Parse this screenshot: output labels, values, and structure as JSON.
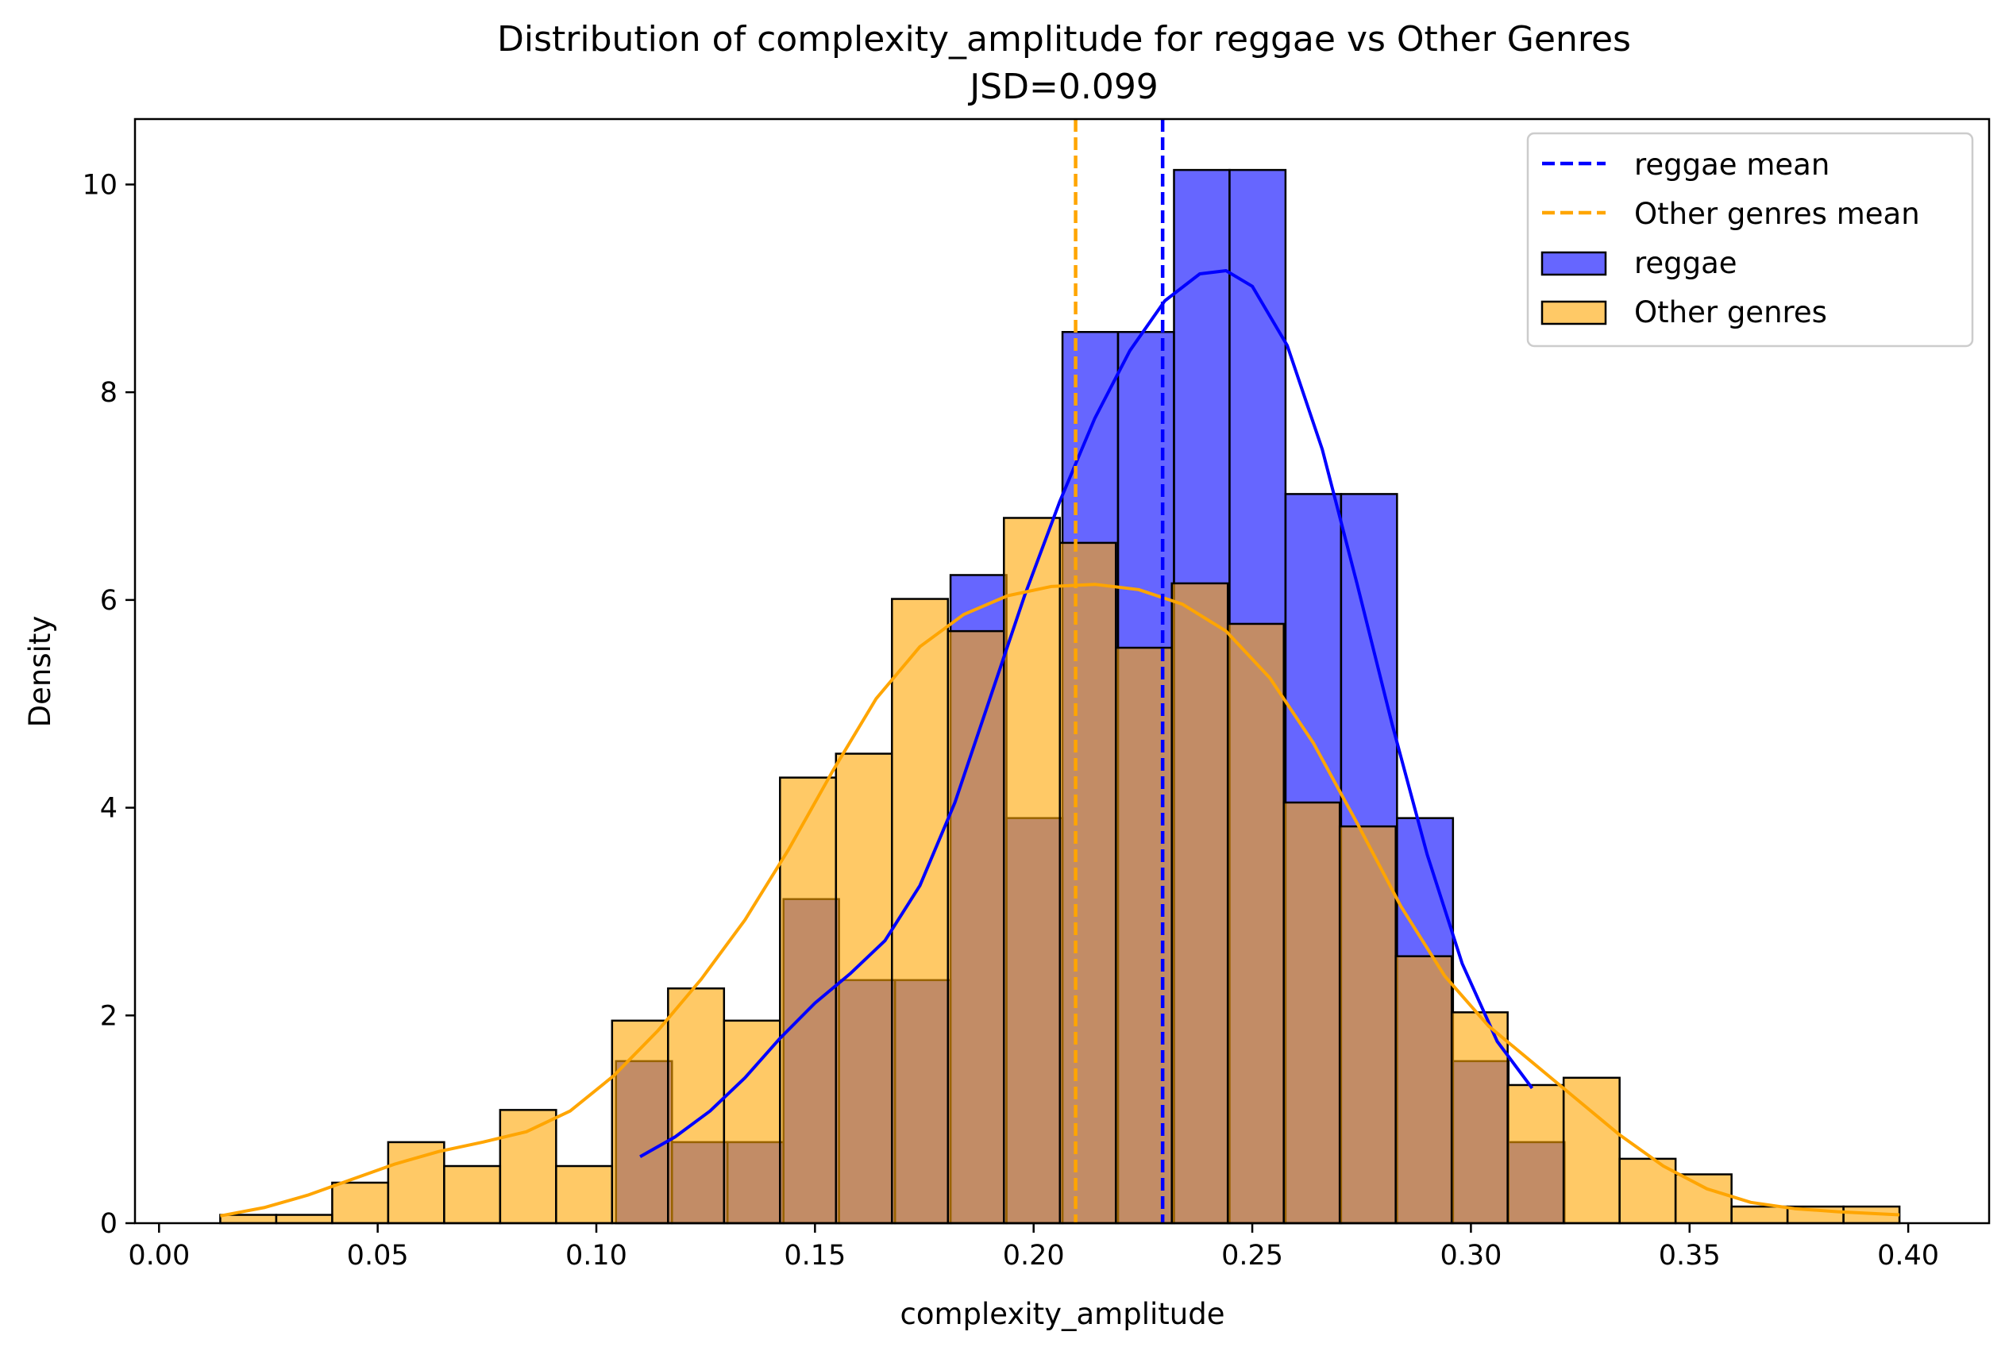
{
  "chart_data": {
    "type": "histogram",
    "title": "Distribution of complexity_amplitude for reggae vs Other Genres",
    "subtitle": "JSD=0.099",
    "xlabel": "complexity_amplitude",
    "ylabel": "Density",
    "xlim": [
      -0.0055,
      0.4185
    ],
    "ylim": [
      0,
      10.63
    ],
    "xticks": [
      0.0,
      0.05,
      0.1,
      0.15,
      0.2,
      0.25,
      0.3,
      0.35,
      0.4
    ],
    "xtick_labels": [
      "0.00",
      "0.05",
      "0.10",
      "0.15",
      "0.20",
      "0.25",
      "0.30",
      "0.35",
      "0.40"
    ],
    "yticks": [
      0,
      2,
      4,
      6,
      8,
      10
    ],
    "ytick_labels": [
      "0",
      "2",
      "4",
      "6",
      "8",
      "10"
    ],
    "grid": false,
    "legend_position": "top-right",
    "legend": [
      {
        "label": "reggae mean",
        "kind": "dashed-line",
        "color": "#0000ff"
      },
      {
        "label": "Other genres mean",
        "kind": "dashed-line",
        "color": "#ffa500"
      },
      {
        "label": "reggae",
        "kind": "patch",
        "color": "#0000ff"
      },
      {
        "label": "Other genres",
        "kind": "patch",
        "color": "#ffa500"
      }
    ],
    "series": [
      {
        "name": "reggae",
        "color": "#0000ff",
        "alpha": 0.6,
        "bins": [
          {
            "x0": 0.1045,
            "x1": 0.1173,
            "density": 1.56
          },
          {
            "x0": 0.1173,
            "x1": 0.13,
            "density": 0.78
          },
          {
            "x0": 0.13,
            "x1": 0.1428,
            "density": 0.78
          },
          {
            "x0": 0.1428,
            "x1": 0.1555,
            "density": 3.12
          },
          {
            "x0": 0.1555,
            "x1": 0.1683,
            "density": 2.34
          },
          {
            "x0": 0.1683,
            "x1": 0.181,
            "density": 2.34
          },
          {
            "x0": 0.181,
            "x1": 0.1938,
            "density": 6.24
          },
          {
            "x0": 0.1938,
            "x1": 0.2066,
            "density": 3.9
          },
          {
            "x0": 0.2066,
            "x1": 0.2193,
            "density": 8.58
          },
          {
            "x0": 0.2193,
            "x1": 0.2321,
            "density": 8.58
          },
          {
            "x0": 0.2321,
            "x1": 0.2448,
            "density": 10.14
          },
          {
            "x0": 0.2448,
            "x1": 0.2576,
            "density": 10.14
          },
          {
            "x0": 0.2576,
            "x1": 0.2703,
            "density": 7.02
          },
          {
            "x0": 0.2703,
            "x1": 0.2831,
            "density": 7.02
          },
          {
            "x0": 0.2831,
            "x1": 0.2959,
            "density": 3.9
          },
          {
            "x0": 0.2959,
            "x1": 0.3086,
            "density": 1.56
          },
          {
            "x0": 0.3086,
            "x1": 0.3214,
            "density": 0.78
          }
        ],
        "kde": [
          [
            0.11,
            0.64
          ],
          [
            0.118,
            0.83
          ],
          [
            0.126,
            1.08
          ],
          [
            0.134,
            1.4
          ],
          [
            0.142,
            1.78
          ],
          [
            0.15,
            2.12
          ],
          [
            0.158,
            2.4
          ],
          [
            0.166,
            2.72
          ],
          [
            0.174,
            3.25
          ],
          [
            0.182,
            4.05
          ],
          [
            0.19,
            5.05
          ],
          [
            0.198,
            6.05
          ],
          [
            0.206,
            6.95
          ],
          [
            0.214,
            7.75
          ],
          [
            0.222,
            8.4
          ],
          [
            0.23,
            8.88
          ],
          [
            0.238,
            9.14
          ],
          [
            0.244,
            9.17
          ],
          [
            0.25,
            9.02
          ],
          [
            0.258,
            8.45
          ],
          [
            0.266,
            7.45
          ],
          [
            0.274,
            6.15
          ],
          [
            0.282,
            4.8
          ],
          [
            0.29,
            3.55
          ],
          [
            0.298,
            2.5
          ],
          [
            0.306,
            1.75
          ],
          [
            0.314,
            1.3
          ]
        ],
        "mean": 0.2295
      },
      {
        "name": "Other genres",
        "color": "#ffa500",
        "alpha": 0.6,
        "bins": [
          {
            "x0": 0.014,
            "x1": 0.0268,
            "density": 0.08
          },
          {
            "x0": 0.0268,
            "x1": 0.0396,
            "density": 0.08
          },
          {
            "x0": 0.0396,
            "x1": 0.0524,
            "density": 0.39
          },
          {
            "x0": 0.0524,
            "x1": 0.0652,
            "density": 0.78
          },
          {
            "x0": 0.0652,
            "x1": 0.078,
            "density": 0.55
          },
          {
            "x0": 0.078,
            "x1": 0.0908,
            "density": 1.09
          },
          {
            "x0": 0.0908,
            "x1": 0.1036,
            "density": 0.55
          },
          {
            "x0": 0.1036,
            "x1": 0.1164,
            "density": 1.95
          },
          {
            "x0": 0.1164,
            "x1": 0.1292,
            "density": 2.26
          },
          {
            "x0": 0.1292,
            "x1": 0.142,
            "density": 1.95
          },
          {
            "x0": 0.142,
            "x1": 0.1548,
            "density": 4.29
          },
          {
            "x0": 0.1548,
            "x1": 0.1676,
            "density": 4.52
          },
          {
            "x0": 0.1676,
            "x1": 0.1804,
            "density": 6.01
          },
          {
            "x0": 0.1804,
            "x1": 0.1932,
            "density": 5.7
          },
          {
            "x0": 0.1932,
            "x1": 0.206,
            "density": 6.79
          },
          {
            "x0": 0.206,
            "x1": 0.2188,
            "density": 6.55
          },
          {
            "x0": 0.2188,
            "x1": 0.2316,
            "density": 5.54
          },
          {
            "x0": 0.2316,
            "x1": 0.2444,
            "density": 6.16
          },
          {
            "x0": 0.2444,
            "x1": 0.2572,
            "density": 5.77
          },
          {
            "x0": 0.2572,
            "x1": 0.27,
            "density": 4.05
          },
          {
            "x0": 0.27,
            "x1": 0.2828,
            "density": 3.82
          },
          {
            "x0": 0.2828,
            "x1": 0.2956,
            "density": 2.57
          },
          {
            "x0": 0.2956,
            "x1": 0.3084,
            "density": 2.03
          },
          {
            "x0": 0.3084,
            "x1": 0.3212,
            "density": 1.33
          },
          {
            "x0": 0.3212,
            "x1": 0.334,
            "density": 1.4
          },
          {
            "x0": 0.334,
            "x1": 0.3468,
            "density": 0.62
          },
          {
            "x0": 0.3468,
            "x1": 0.3596,
            "density": 0.47
          },
          {
            "x0": 0.3596,
            "x1": 0.3724,
            "density": 0.16
          },
          {
            "x0": 0.3724,
            "x1": 0.3852,
            "density": 0.16
          },
          {
            "x0": 0.3852,
            "x1": 0.398,
            "density": 0.16
          }
        ],
        "kde": [
          [
            0.014,
            0.07
          ],
          [
            0.024,
            0.15
          ],
          [
            0.034,
            0.27
          ],
          [
            0.044,
            0.42
          ],
          [
            0.054,
            0.57
          ],
          [
            0.064,
            0.69
          ],
          [
            0.074,
            0.78
          ],
          [
            0.084,
            0.88
          ],
          [
            0.094,
            1.08
          ],
          [
            0.104,
            1.42
          ],
          [
            0.114,
            1.85
          ],
          [
            0.124,
            2.35
          ],
          [
            0.134,
            2.92
          ],
          [
            0.144,
            3.6
          ],
          [
            0.154,
            4.35
          ],
          [
            0.164,
            5.05
          ],
          [
            0.174,
            5.55
          ],
          [
            0.184,
            5.86
          ],
          [
            0.194,
            6.04
          ],
          [
            0.204,
            6.13
          ],
          [
            0.214,
            6.15
          ],
          [
            0.224,
            6.1
          ],
          [
            0.234,
            5.96
          ],
          [
            0.244,
            5.7
          ],
          [
            0.254,
            5.25
          ],
          [
            0.264,
            4.62
          ],
          [
            0.274,
            3.85
          ],
          [
            0.284,
            3.05
          ],
          [
            0.294,
            2.38
          ],
          [
            0.304,
            1.9
          ],
          [
            0.314,
            1.55
          ],
          [
            0.324,
            1.2
          ],
          [
            0.334,
            0.85
          ],
          [
            0.344,
            0.55
          ],
          [
            0.354,
            0.33
          ],
          [
            0.364,
            0.2
          ],
          [
            0.374,
            0.14
          ],
          [
            0.384,
            0.11
          ],
          [
            0.398,
            0.08
          ]
        ],
        "mean": 0.2096
      }
    ]
  }
}
